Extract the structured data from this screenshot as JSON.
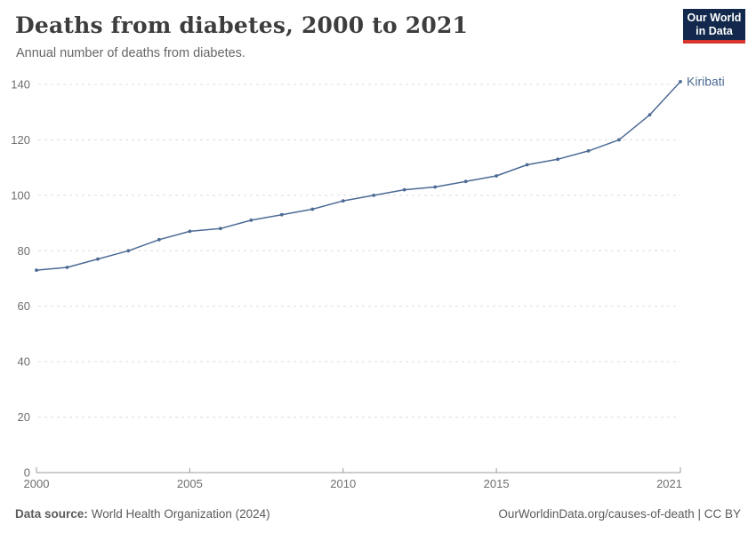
{
  "header": {
    "title": "Deaths from diabetes, 2000 to 2021",
    "subtitle": "Annual number of deaths from diabetes.",
    "logo": {
      "line1": "Our World",
      "line2": "in Data"
    }
  },
  "footer": {
    "source_label": "Data source:",
    "source_text": "World Health Organization (2024)",
    "link_text": "OurWorldinData.org/causes-of-death | CC BY"
  },
  "colors": {
    "line": "#4c6a94",
    "series_label": "#4c6a94",
    "gridline": "#dcdcdc",
    "axis": "#9b9b9b",
    "tick_label": "#6e6e6e",
    "title": "#3d3d3d",
    "subtitle": "#666666",
    "footer_text": "#5b5b5b",
    "logo_background": "#12294d",
    "logo_red": "#d8352e"
  },
  "chart_data": {
    "type": "line",
    "title": "Deaths from diabetes, 2000 to 2021",
    "subtitle": "Annual number of deaths from diabetes.",
    "xlabel": "",
    "ylabel": "",
    "x": [
      2000,
      2001,
      2002,
      2003,
      2004,
      2005,
      2006,
      2007,
      2008,
      2009,
      2010,
      2011,
      2012,
      2013,
      2014,
      2015,
      2016,
      2017,
      2018,
      2019,
      2020,
      2021
    ],
    "series": [
      {
        "name": "Kiribati",
        "color": "#4c6a94",
        "values": [
          73,
          74,
          77,
          80,
          84,
          87,
          88,
          91,
          93,
          95,
          98,
          100,
          102,
          103,
          105,
          107,
          111,
          113,
          116,
          120,
          129,
          141
        ]
      }
    ],
    "x_ticks": [
      2000,
      2005,
      2010,
      2015,
      2021
    ],
    "y_ticks": [
      0,
      20,
      40,
      60,
      80,
      100,
      120,
      140
    ],
    "xlim": [
      2000,
      2021
    ],
    "ylim": [
      0,
      140
    ],
    "grid": "horizontal-dashed",
    "legend": "series-end-label"
  }
}
